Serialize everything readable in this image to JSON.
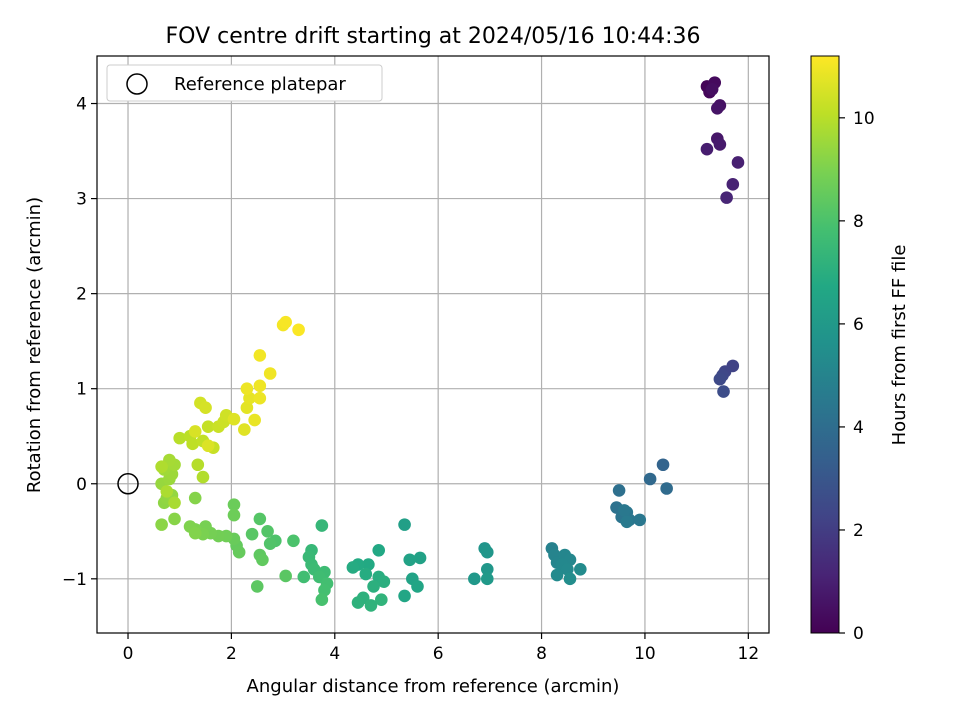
{
  "chart_data": {
    "type": "scatter",
    "title": "FOV centre drift starting at 2024/05/16 10:44:36",
    "xlabel": "Angular distance from reference (arcmin)",
    "ylabel": "Rotation from reference (arcmin)",
    "xlim": [
      -0.6,
      12.4
    ],
    "ylim": [
      -1.57,
      4.5
    ],
    "x_ticks": [
      0,
      2,
      4,
      6,
      8,
      10,
      12
    ],
    "y_ticks": [
      -1,
      0,
      1,
      2,
      3,
      4
    ],
    "x_tick_labels": [
      "0",
      "2",
      "4",
      "6",
      "8",
      "10",
      "12"
    ],
    "y_tick_labels": [
      "−1",
      "0",
      "1",
      "2",
      "3",
      "4"
    ],
    "grid": true,
    "legend": {
      "position": "top-left",
      "entries": [
        "Reference platepar"
      ]
    },
    "reference_point": {
      "x": 0,
      "y": 0
    },
    "colorbar": {
      "label": "Hours from first FF file",
      "colormap": "viridis",
      "range": [
        0,
        11.2
      ],
      "ticks": [
        0,
        2,
        4,
        6,
        8,
        10
      ],
      "tick_labels": [
        "0",
        "2",
        "4",
        "6",
        "8",
        "10"
      ]
    },
    "points": [
      {
        "x": 11.2,
        "y": 4.18,
        "h": 0.1
      },
      {
        "x": 11.25,
        "y": 4.12,
        "h": 0.2
      },
      {
        "x": 11.35,
        "y": 4.22,
        "h": 0.3
      },
      {
        "x": 11.3,
        "y": 4.15,
        "h": 0.4
      },
      {
        "x": 11.45,
        "y": 3.98,
        "h": 0.5
      },
      {
        "x": 11.4,
        "y": 3.95,
        "h": 0.6
      },
      {
        "x": 11.4,
        "y": 3.63,
        "h": 0.7
      },
      {
        "x": 11.45,
        "y": 3.57,
        "h": 0.8
      },
      {
        "x": 11.2,
        "y": 3.52,
        "h": 0.9
      },
      {
        "x": 11.8,
        "y": 3.38,
        "h": 1.0
      },
      {
        "x": 11.7,
        "y": 3.15,
        "h": 1.1
      },
      {
        "x": 11.58,
        "y": 3.01,
        "h": 1.2
      },
      {
        "x": 11.7,
        "y": 1.24,
        "h": 2.2
      },
      {
        "x": 11.55,
        "y": 1.18,
        "h": 2.3
      },
      {
        "x": 11.5,
        "y": 1.14,
        "h": 2.4
      },
      {
        "x": 11.45,
        "y": 1.1,
        "h": 2.5
      },
      {
        "x": 11.52,
        "y": 0.97,
        "h": 2.6
      },
      {
        "x": 10.35,
        "y": 0.2,
        "h": 3.6
      },
      {
        "x": 10.1,
        "y": 0.05,
        "h": 3.8
      },
      {
        "x": 10.42,
        "y": -0.05,
        "h": 3.9
      },
      {
        "x": 9.5,
        "y": -0.07,
        "h": 4.1
      },
      {
        "x": 9.45,
        "y": -0.25,
        "h": 4.2
      },
      {
        "x": 9.55,
        "y": -0.35,
        "h": 4.3
      },
      {
        "x": 9.65,
        "y": -0.3,
        "h": 4.35
      },
      {
        "x": 9.7,
        "y": -0.38,
        "h": 4.4
      },
      {
        "x": 9.9,
        "y": -0.38,
        "h": 4.45
      },
      {
        "x": 9.6,
        "y": -0.28,
        "h": 4.5
      },
      {
        "x": 9.65,
        "y": -0.4,
        "h": 4.55
      },
      {
        "x": 8.2,
        "y": -0.68,
        "h": 4.9
      },
      {
        "x": 8.25,
        "y": -0.75,
        "h": 5.0
      },
      {
        "x": 8.3,
        "y": -0.83,
        "h": 5.05
      },
      {
        "x": 8.45,
        "y": -0.75,
        "h": 5.1
      },
      {
        "x": 8.55,
        "y": -0.8,
        "h": 5.15
      },
      {
        "x": 8.4,
        "y": -0.85,
        "h": 5.2
      },
      {
        "x": 8.5,
        "y": -0.9,
        "h": 5.25
      },
      {
        "x": 8.3,
        "y": -0.96,
        "h": 5.3
      },
      {
        "x": 8.75,
        "y": -0.9,
        "h": 5.35
      },
      {
        "x": 8.55,
        "y": -1.0,
        "h": 5.4
      },
      {
        "x": 6.9,
        "y": -0.68,
        "h": 5.8
      },
      {
        "x": 6.95,
        "y": -0.72,
        "h": 5.85
      },
      {
        "x": 6.95,
        "y": -0.9,
        "h": 5.9
      },
      {
        "x": 6.7,
        "y": -1.0,
        "h": 5.95
      },
      {
        "x": 6.95,
        "y": -1.0,
        "h": 6.0
      },
      {
        "x": 5.35,
        "y": -0.43,
        "h": 6.3
      },
      {
        "x": 5.65,
        "y": -0.78,
        "h": 6.4
      },
      {
        "x": 5.45,
        "y": -0.8,
        "h": 6.45
      },
      {
        "x": 5.5,
        "y": -1.0,
        "h": 6.5
      },
      {
        "x": 5.6,
        "y": -1.08,
        "h": 6.55
      },
      {
        "x": 5.35,
        "y": -1.18,
        "h": 6.6
      },
      {
        "x": 4.85,
        "y": -0.7,
        "h": 6.7
      },
      {
        "x": 4.65,
        "y": -0.85,
        "h": 6.75
      },
      {
        "x": 4.45,
        "y": -0.85,
        "h": 6.8
      },
      {
        "x": 4.35,
        "y": -0.88,
        "h": 6.85
      },
      {
        "x": 4.6,
        "y": -0.95,
        "h": 6.9
      },
      {
        "x": 4.85,
        "y": -0.98,
        "h": 6.95
      },
      {
        "x": 4.95,
        "y": -1.03,
        "h": 7.0
      },
      {
        "x": 4.75,
        "y": -1.08,
        "h": 7.05
      },
      {
        "x": 4.55,
        "y": -1.2,
        "h": 7.1
      },
      {
        "x": 4.45,
        "y": -1.25,
        "h": 7.15
      },
      {
        "x": 4.7,
        "y": -1.28,
        "h": 7.2
      },
      {
        "x": 4.9,
        "y": -1.22,
        "h": 7.25
      },
      {
        "x": 3.75,
        "y": -0.44,
        "h": 7.4
      },
      {
        "x": 3.55,
        "y": -0.7,
        "h": 7.45
      },
      {
        "x": 3.5,
        "y": -0.77,
        "h": 7.5
      },
      {
        "x": 3.55,
        "y": -0.85,
        "h": 7.55
      },
      {
        "x": 3.6,
        "y": -0.9,
        "h": 7.6
      },
      {
        "x": 3.8,
        "y": -0.93,
        "h": 7.65
      },
      {
        "x": 3.7,
        "y": -0.98,
        "h": 7.7
      },
      {
        "x": 3.4,
        "y": -0.98,
        "h": 7.75
      },
      {
        "x": 3.85,
        "y": -1.05,
        "h": 7.8
      },
      {
        "x": 3.8,
        "y": -1.12,
        "h": 7.85
      },
      {
        "x": 3.75,
        "y": -1.22,
        "h": 7.9
      },
      {
        "x": 3.2,
        "y": -0.6,
        "h": 8.0
      },
      {
        "x": 2.85,
        "y": -0.6,
        "h": 8.05
      },
      {
        "x": 2.75,
        "y": -0.63,
        "h": 8.1
      },
      {
        "x": 2.7,
        "y": -0.5,
        "h": 8.15
      },
      {
        "x": 2.55,
        "y": -0.37,
        "h": 8.2
      },
      {
        "x": 2.4,
        "y": -0.53,
        "h": 8.25
      },
      {
        "x": 3.05,
        "y": -0.97,
        "h": 8.3
      },
      {
        "x": 2.5,
        "y": -1.08,
        "h": 8.35
      },
      {
        "x": 2.55,
        "y": -0.75,
        "h": 8.4
      },
      {
        "x": 2.6,
        "y": -0.8,
        "h": 8.45
      },
      {
        "x": 2.1,
        "y": -0.65,
        "h": 8.5
      },
      {
        "x": 2.15,
        "y": -0.72,
        "h": 8.55
      },
      {
        "x": 2.05,
        "y": -0.58,
        "h": 8.6
      },
      {
        "x": 2.05,
        "y": -0.22,
        "h": 8.65
      },
      {
        "x": 2.05,
        "y": -0.33,
        "h": 8.7
      },
      {
        "x": 1.9,
        "y": -0.55,
        "h": 8.75
      },
      {
        "x": 1.75,
        "y": -0.55,
        "h": 8.8
      },
      {
        "x": 1.6,
        "y": -0.52,
        "h": 8.85
      },
      {
        "x": 1.5,
        "y": -0.45,
        "h": 8.9
      },
      {
        "x": 1.45,
        "y": -0.53,
        "h": 8.95
      },
      {
        "x": 1.3,
        "y": -0.48,
        "h": 9.0
      },
      {
        "x": 1.2,
        "y": -0.45,
        "h": 9.05
      },
      {
        "x": 1.3,
        "y": -0.52,
        "h": 9.1
      },
      {
        "x": 1.3,
        "y": -0.15,
        "h": 9.15
      },
      {
        "x": 0.9,
        "y": -0.37,
        "h": 9.2
      },
      {
        "x": 0.65,
        "y": -0.43,
        "h": 9.25
      },
      {
        "x": 0.7,
        "y": -0.2,
        "h": 9.3
      },
      {
        "x": 0.75,
        "y": -0.15,
        "h": 9.35
      },
      {
        "x": 0.85,
        "y": -0.12,
        "h": 9.4
      },
      {
        "x": 0.65,
        "y": 0.0,
        "h": 9.45
      },
      {
        "x": 0.8,
        "y": 0.05,
        "h": 9.5
      },
      {
        "x": 0.85,
        "y": 0.1,
        "h": 9.55
      },
      {
        "x": 0.7,
        "y": 0.15,
        "h": 9.6
      },
      {
        "x": 0.9,
        "y": 0.2,
        "h": 9.65
      },
      {
        "x": 0.8,
        "y": 0.25,
        "h": 9.7
      },
      {
        "x": 0.9,
        "y": -0.2,
        "h": 9.75
      },
      {
        "x": 0.75,
        "y": -0.08,
        "h": 9.8
      },
      {
        "x": 0.65,
        "y": 0.18,
        "h": 9.85
      },
      {
        "x": 1.45,
        "y": 0.07,
        "h": 9.9
      },
      {
        "x": 1.35,
        "y": 0.2,
        "h": 9.95
      },
      {
        "x": 1.0,
        "y": 0.48,
        "h": 10.0
      },
      {
        "x": 1.2,
        "y": 0.5,
        "h": 10.05
      },
      {
        "x": 1.25,
        "y": 0.42,
        "h": 10.1
      },
      {
        "x": 1.45,
        "y": 0.45,
        "h": 10.15
      },
      {
        "x": 1.55,
        "y": 0.6,
        "h": 10.2
      },
      {
        "x": 1.65,
        "y": 0.38,
        "h": 10.25
      },
      {
        "x": 1.75,
        "y": 0.6,
        "h": 10.3
      },
      {
        "x": 1.85,
        "y": 0.65,
        "h": 10.35
      },
      {
        "x": 1.9,
        "y": 0.72,
        "h": 10.4
      },
      {
        "x": 1.4,
        "y": 0.85,
        "h": 10.45
      },
      {
        "x": 1.5,
        "y": 0.8,
        "h": 10.5
      },
      {
        "x": 1.3,
        "y": 0.55,
        "h": 10.55
      },
      {
        "x": 1.55,
        "y": 0.4,
        "h": 10.6
      },
      {
        "x": 2.05,
        "y": 0.68,
        "h": 10.65
      },
      {
        "x": 2.25,
        "y": 0.57,
        "h": 10.7
      },
      {
        "x": 2.3,
        "y": 0.8,
        "h": 10.75
      },
      {
        "x": 2.35,
        "y": 0.9,
        "h": 10.8
      },
      {
        "x": 2.45,
        "y": 0.67,
        "h": 10.85
      },
      {
        "x": 2.55,
        "y": 0.9,
        "h": 10.9
      },
      {
        "x": 2.3,
        "y": 1.0,
        "h": 10.92
      },
      {
        "x": 2.55,
        "y": 1.03,
        "h": 10.95
      },
      {
        "x": 2.75,
        "y": 1.16,
        "h": 10.97
      },
      {
        "x": 2.55,
        "y": 1.35,
        "h": 11.0
      },
      {
        "x": 3.0,
        "y": 1.67,
        "h": 11.05
      },
      {
        "x": 3.05,
        "y": 1.7,
        "h": 11.1
      },
      {
        "x": 3.3,
        "y": 1.62,
        "h": 11.15
      }
    ]
  }
}
